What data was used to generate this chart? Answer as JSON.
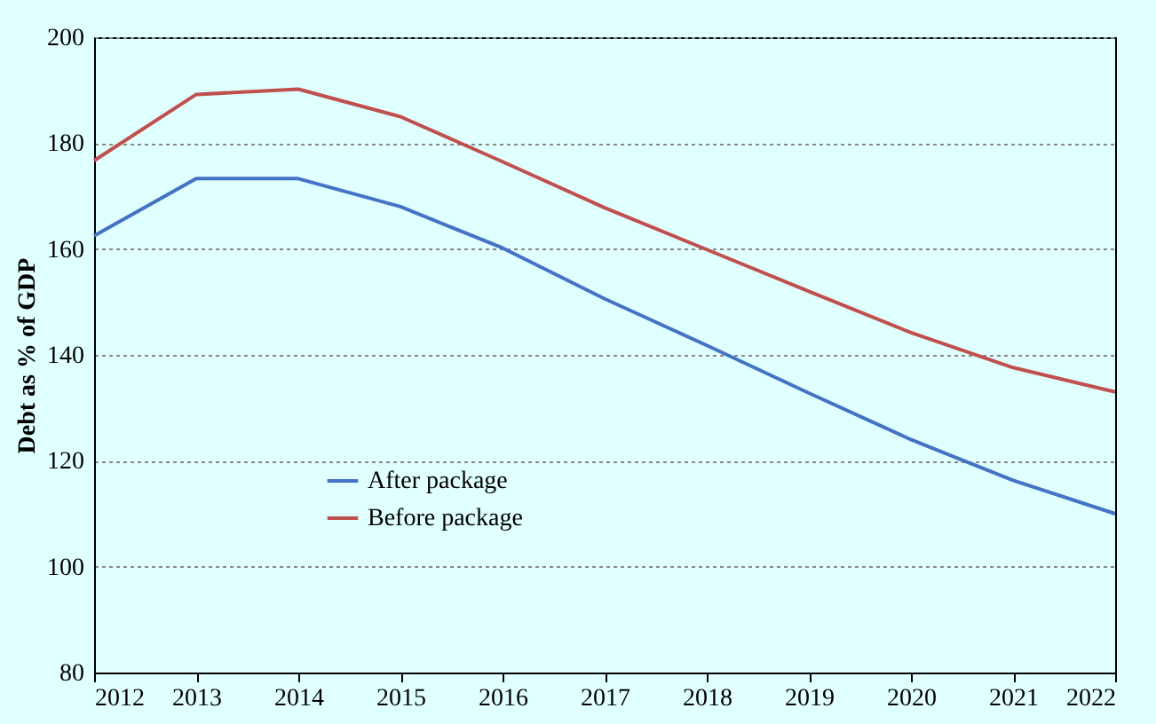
{
  "chart_data": {
    "type": "line",
    "ylabel": "Debt as % of GDP",
    "x": [
      2012,
      2013,
      2014,
      2015,
      2016,
      2017,
      2018,
      2019,
      2020,
      2021,
      2022
    ],
    "series": [
      {
        "name": "After package",
        "color": "#4472c4",
        "values": [
          162.5,
          173.3,
          173.3,
          168,
          160.2,
          150.6,
          141.8,
          132.8,
          124,
          116.3,
          110
        ]
      },
      {
        "name": "Before package",
        "color": "#c0504d",
        "values": [
          176.7,
          189.2,
          190.2,
          185,
          176.5,
          167.8,
          159.9,
          152,
          144.2,
          137.6,
          133
        ]
      }
    ],
    "xlim": [
      2012,
      2022
    ],
    "xticks": [
      2012,
      2013,
      2014,
      2015,
      2016,
      2017,
      2018,
      2019,
      2020,
      2021,
      2022
    ],
    "ylim": [
      80,
      200
    ],
    "yticks": [
      80,
      100,
      120,
      140,
      160,
      180,
      200
    ],
    "grid": "y",
    "legend": "bottom left",
    "marker": "none",
    "line_style": "solid"
  }
}
